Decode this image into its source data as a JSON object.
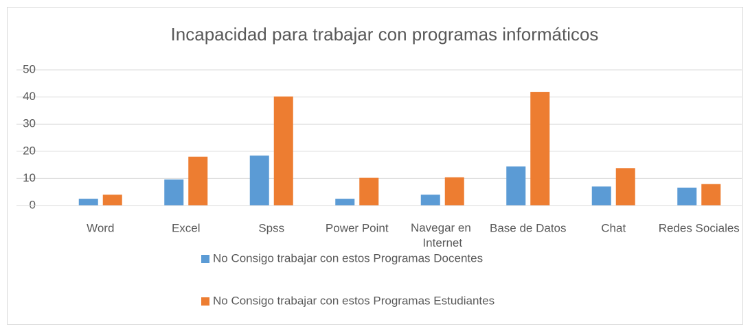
{
  "chart_data": {
    "type": "bar",
    "title": "Incapacidad para trabajar con programas informáticos",
    "categories": [
      "Word",
      "Excel",
      "Spss",
      "Power Point",
      "Navegar en Internet",
      "Base de Datos",
      "Chat",
      "Redes Sociales"
    ],
    "series": [
      {
        "name": "No Consigo trabajar con estos Programas Docentes",
        "color": "#5b9bd5",
        "values": [
          2.5,
          9.6,
          18.4,
          2.5,
          4,
          14.4,
          7,
          6.6
        ]
      },
      {
        "name": "No Consigo trabajar con estos Programas Estudiantes",
        "color": "#ed7d31",
        "values": [
          4,
          18,
          40.2,
          10.2,
          10.4,
          41.9,
          13.8,
          7.9
        ]
      }
    ],
    "ylim": [
      0,
      50
    ],
    "yticks": [
      0,
      10,
      20,
      30,
      40,
      50
    ],
    "grid": true,
    "legend": "bottom"
  }
}
